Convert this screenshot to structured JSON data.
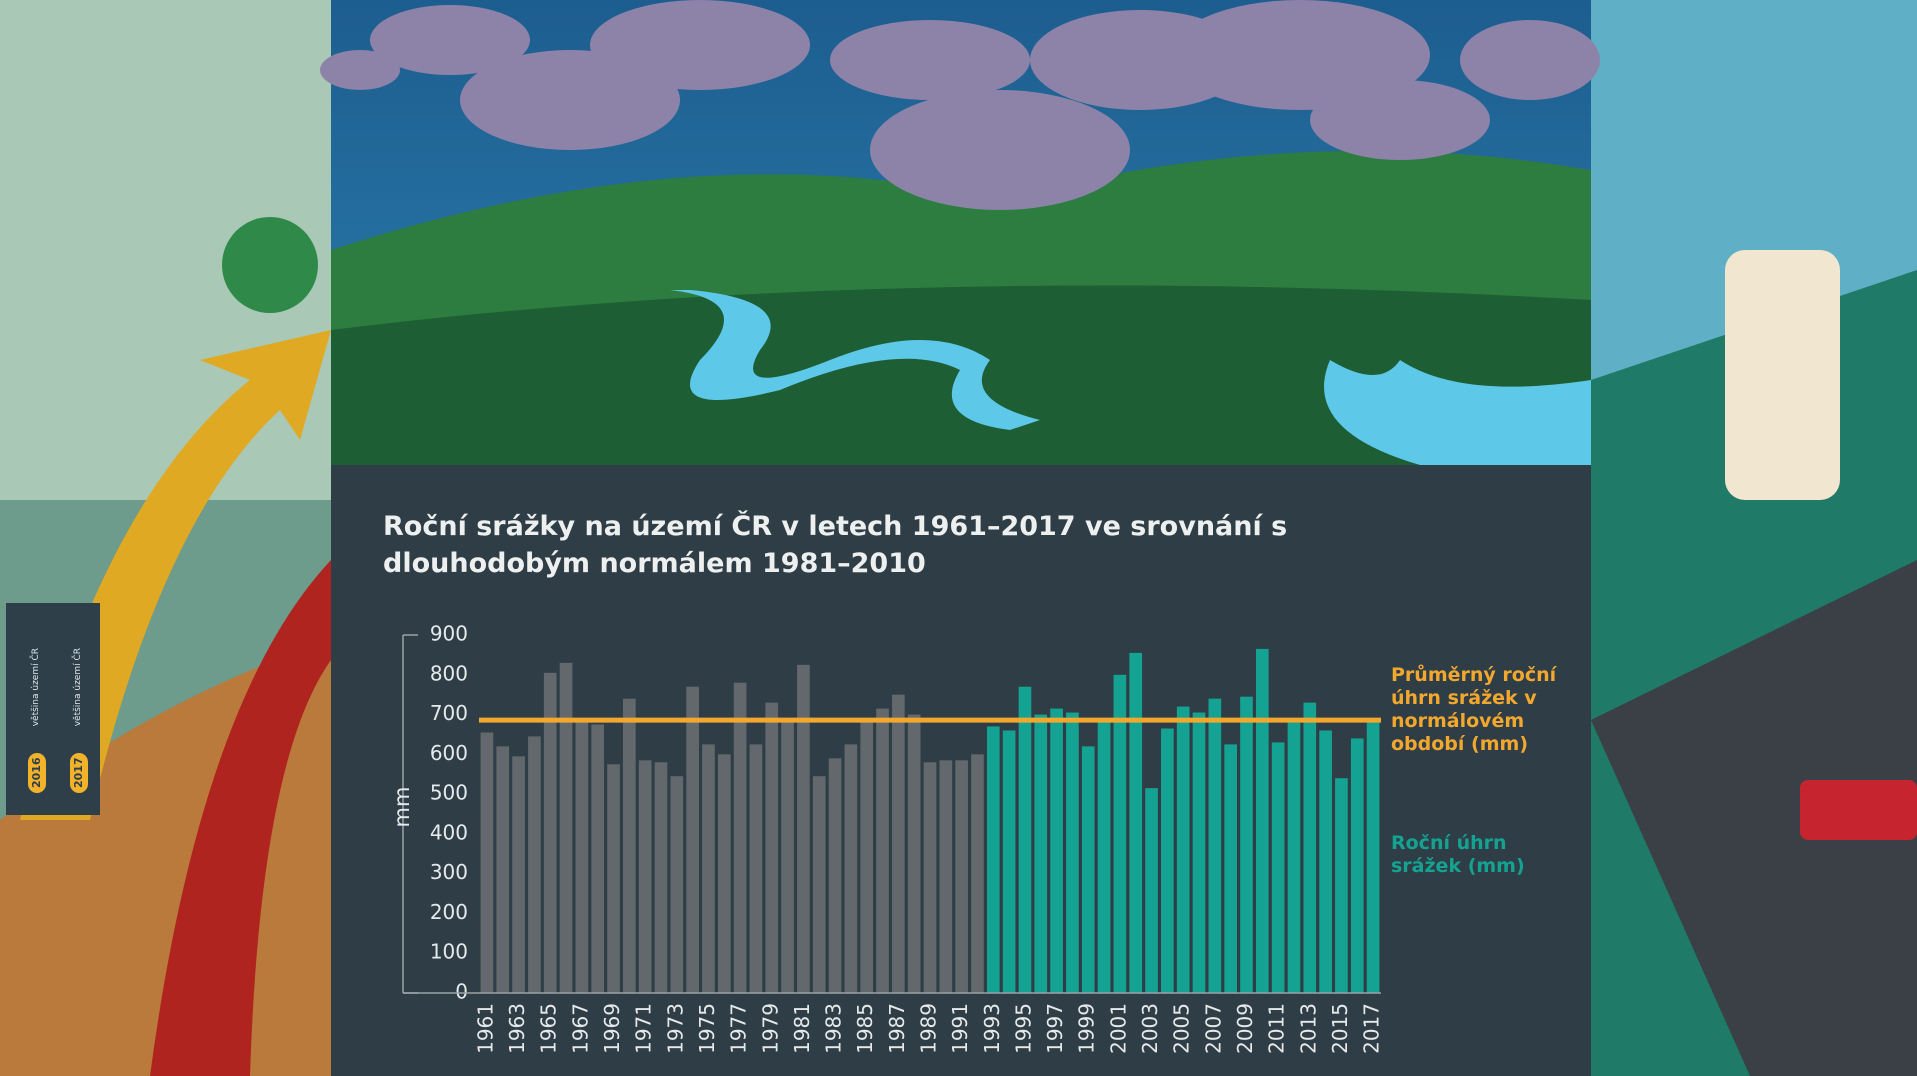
{
  "chart_data": {
    "type": "bar",
    "title": "Roční srážky na území ČR v letech 1961–2017 ve srovnání s dlouhodobým normálem 1981–2010",
    "y_label": "mm",
    "categories": [
      "1961",
      null,
      "1963",
      null,
      "1965",
      null,
      "1967",
      null,
      "1969",
      null,
      "1971",
      null,
      "1973",
      null,
      "1975",
      null,
      "1977",
      null,
      "1979",
      null,
      "1981",
      null,
      "1983",
      null,
      "1985",
      null,
      "1987",
      null,
      "1989",
      null,
      "1991",
      null,
      "1993",
      null,
      "1995",
      null,
      "1997",
      null,
      "1999",
      null,
      "2001",
      null,
      "2003",
      null,
      "2005",
      null,
      "2007",
      null,
      "2009",
      null,
      "2011",
      null,
      "2013",
      null,
      "2015",
      null,
      "2017"
    ],
    "series": [
      {
        "color": "#62686c",
        "values": [
          655,
          620,
          595,
          645,
          805,
          830,
          690,
          675,
          575,
          740,
          585,
          580,
          545,
          770,
          625,
          600,
          780,
          625,
          730,
          690,
          825,
          545,
          590,
          625,
          690,
          715,
          750,
          700,
          580,
          585,
          585,
          600,
          null,
          null,
          null,
          null,
          null,
          null,
          null,
          null,
          null,
          null,
          null,
          null,
          null,
          null,
          null,
          null,
          null,
          null,
          null,
          null,
          null,
          null,
          null,
          null,
          null
        ]
      },
      {
        "name": "Roční úhrn srážek (mm)",
        "color": "#14a393",
        "values": [
          null,
          null,
          null,
          null,
          null,
          null,
          null,
          null,
          null,
          null,
          null,
          null,
          null,
          null,
          null,
          null,
          null,
          null,
          null,
          null,
          null,
          null,
          null,
          null,
          null,
          null,
          null,
          null,
          null,
          null,
          null,
          null,
          670,
          660,
          770,
          700,
          715,
          705,
          620,
          690,
          800,
          855,
          515,
          665,
          720,
          705,
          740,
          625,
          745,
          865,
          630,
          680,
          730,
          660,
          540,
          640,
          690
        ]
      }
    ],
    "reference_line": {
      "name": "Průměrný roční úhrn srážek v normálovém období (mm)",
      "value": 686,
      "color": "#f2a72e"
    },
    "ylim": [
      0,
      900
    ],
    "yticks": [
      0,
      100,
      200,
      300,
      400,
      500,
      600,
      700,
      800,
      900
    ],
    "grid": false
  },
  "side_panel": [
    {
      "year": "2016",
      "text": "většina území ČR"
    },
    {
      "year": "2017",
      "text": "většina území ČR"
    }
  ]
}
